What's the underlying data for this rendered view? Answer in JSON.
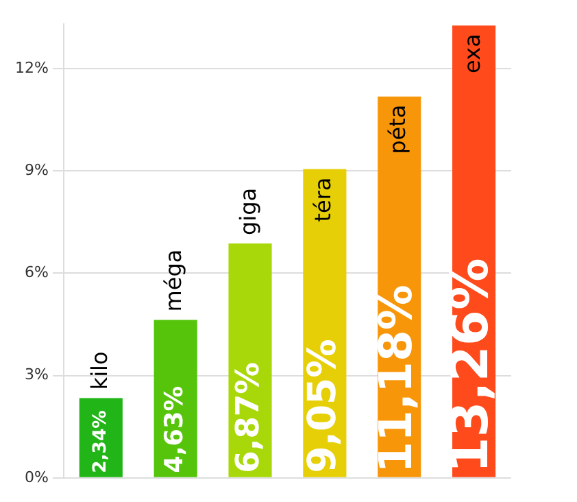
{
  "chart_data": {
    "type": "bar",
    "categories": [
      "kilo",
      "méga",
      "giga",
      "téra",
      "péta",
      "exa"
    ],
    "values": [
      2.34,
      4.63,
      6.87,
      9.05,
      11.18,
      13.26
    ],
    "colors": [
      "#22b517",
      "#55c40a",
      "#a8d80a",
      "#e6cf06",
      "#f8960a",
      "#ff4a1c"
    ],
    "value_labels": [
      "2,34%",
      "4,63%",
      "6,87%",
      "9,05%",
      "11,18%",
      "13,26%"
    ],
    "ylim": [
      0,
      13.3
    ],
    "yticks": [
      {
        "value": 0,
        "label": "0%"
      },
      {
        "value": 3,
        "label": "3%"
      },
      {
        "value": 6,
        "label": "6%"
      },
      {
        "value": 9,
        "label": "9%"
      },
      {
        "value": 12,
        "label": "12%"
      }
    ],
    "grid": "y",
    "legend": false
  }
}
